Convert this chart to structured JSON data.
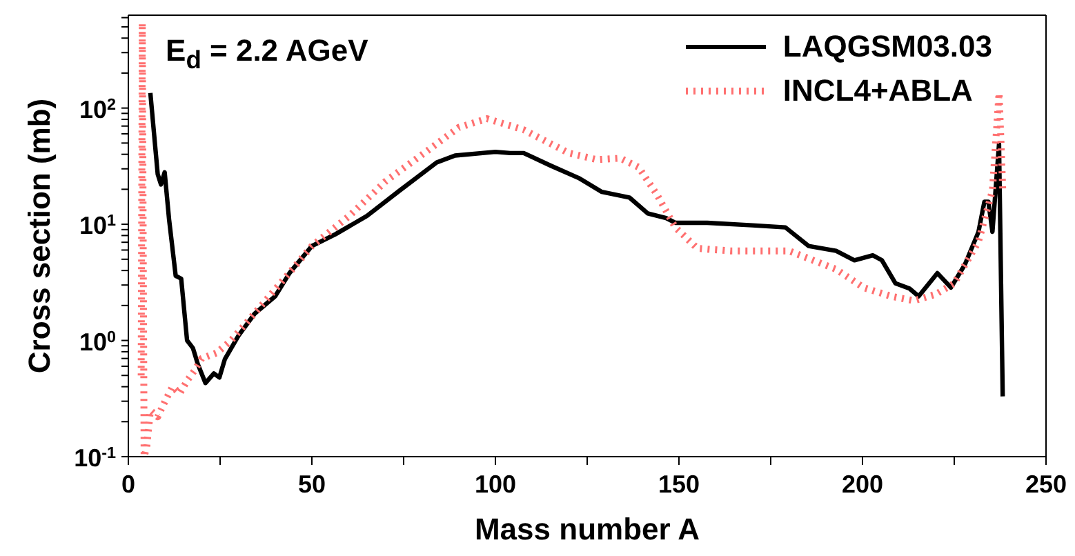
{
  "chart_data": {
    "type": "line",
    "xlabel": "Mass number A",
    "ylabel": "Cross section (mb)",
    "annotations": [
      "E$_{d}$ = 2.2 AGeV"
    ],
    "xlim": [
      0,
      250
    ],
    "xticks": [
      0,
      {
        "value": 25,
        "label": null
      },
      50,
      {
        "value": 75,
        "label": null
      },
      100,
      {
        "value": 125,
        "label": null
      },
      150,
      {
        "value": 175,
        "label": null
      },
      200,
      {
        "value": 225,
        "label": null
      },
      250
    ],
    "ylim": [
      0.1,
      630
    ],
    "log": true,
    "yticks": [
      {
        "value": 0.1,
        "label": "10$^{-1}$"
      },
      {
        "value": 0.2,
        "label": null
      },
      {
        "value": 0.3,
        "label": null
      },
      {
        "value": 0.4,
        "label": null
      },
      {
        "value": 0.5,
        "label": null
      },
      {
        "value": 0.6,
        "label": null
      },
      {
        "value": 0.7,
        "label": null
      },
      {
        "value": 0.8,
        "label": null
      },
      {
        "value": 0.9,
        "label": null
      },
      {
        "value": 1,
        "label": "10$^{0}$"
      },
      {
        "value": 2,
        "label": null
      },
      {
        "value": 3,
        "label": null
      },
      {
        "value": 4,
        "label": null
      },
      {
        "value": 5,
        "label": null
      },
      {
        "value": 6,
        "label": null
      },
      {
        "value": 7,
        "label": null
      },
      {
        "value": 8,
        "label": null
      },
      {
        "value": 9,
        "label": null
      },
      {
        "value": 10,
        "label": "10$^{1}$"
      },
      {
        "value": 20,
        "label": null
      },
      {
        "value": 30,
        "label": null
      },
      {
        "value": 40,
        "label": null
      },
      {
        "value": 50,
        "label": null
      },
      {
        "value": 60,
        "label": null
      },
      {
        "value": 70,
        "label": null
      },
      {
        "value": 80,
        "label": null
      },
      {
        "value": 90,
        "label": null
      },
      {
        "value": 100,
        "label": "10$^{2}$"
      },
      {
        "value": 200,
        "label": null
      },
      {
        "value": 300,
        "label": null
      },
      {
        "value": 400,
        "label": null
      },
      {
        "value": 500,
        "label": null
      },
      {
        "value": 600,
        "label": null
      }
    ],
    "legend": "top right",
    "marker": "none",
    "series": [
      {
        "name": "LAQGSM03.03",
        "color": "#000000",
        "line_style": "solid",
        "x": [
          6,
          8,
          8.9,
          9.9,
          11.1,
          12.9,
          14.4,
          16,
          17.6,
          18.9,
          21,
          23.3,
          24.8,
          26.3,
          30,
          34.4,
          40,
          43.9,
          50,
          56.4,
          65,
          74,
          84,
          89,
          100,
          104,
          107.7,
          115,
          122.7,
          129,
          136.5,
          141.5,
          146.5,
          149,
          157.7,
          170,
          179,
          185.3,
          192.8,
          197.8,
          202.8,
          205.3,
          209,
          212.8,
          215.3,
          220.4,
          224.1,
          227.9,
          231.6,
          233.2,
          234.3,
          235.4,
          237.2,
          238.2
        ],
        "values": [
          135,
          27,
          22,
          28,
          11,
          3.6,
          3.4,
          1.0,
          0.86,
          0.63,
          0.43,
          0.52,
          0.48,
          0.69,
          1.1,
          1.7,
          2.4,
          3.8,
          6.5,
          8.2,
          11.8,
          19.6,
          34,
          39,
          42,
          41,
          41,
          32,
          25,
          19,
          17,
          12.4,
          11.3,
          10.3,
          10.3,
          9.8,
          9.4,
          6.5,
          5.9,
          4.9,
          5.4,
          4.9,
          3.1,
          2.8,
          2.4,
          3.8,
          2.85,
          4.5,
          8.6,
          15.6,
          15.6,
          8.6,
          49,
          0.33
        ]
      },
      {
        "name": "INCL4+ABLA",
        "color": "#ff7070",
        "line_style": "dotted",
        "x": [
          3.5,
          3.8,
          4.3,
          5,
          6,
          8,
          10,
          12,
          14,
          16,
          18,
          20,
          24,
          28,
          35,
          45,
          50,
          60.2,
          70.2,
          81.5,
          90,
          97.7,
          107.7,
          120,
          127.6,
          134,
          139,
          144,
          149,
          155,
          164,
          180,
          192.8,
          200.3,
          207.8,
          214,
          220,
          225,
          231.6,
          235.4,
          237.2,
          237.8,
          238.2
        ],
        "values": [
          0.5,
          540,
          0.1,
          0.12,
          0.25,
          0.22,
          0.3,
          0.4,
          0.35,
          0.45,
          0.55,
          0.7,
          0.78,
          1.0,
          1.8,
          4.2,
          6.5,
          11.8,
          23.6,
          43,
          68,
          81,
          65,
          41,
          36,
          37,
          31,
          18,
          9.4,
          6.2,
          5.9,
          5.9,
          4.1,
          2.85,
          2.4,
          2.2,
          2.5,
          3.1,
          7.1,
          19.6,
          135,
          45,
          20
        ]
      }
    ]
  }
}
